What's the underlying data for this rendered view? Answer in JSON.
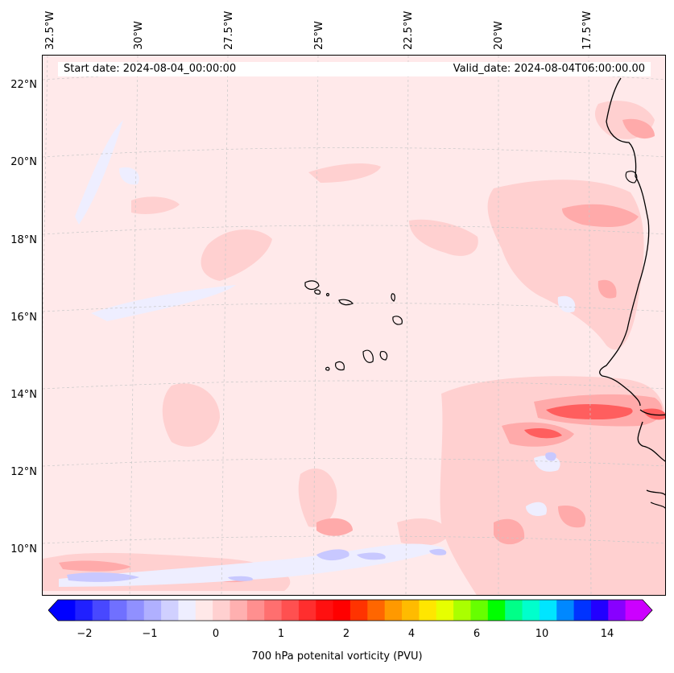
{
  "header": {
    "start_date": "Start date: 2024-08-04_00:00:00",
    "valid_date": "Valid_date: 2024-08-04T06:00:00.00"
  },
  "axes": {
    "lon_labels": [
      "32.5°W",
      "30°W",
      "27.5°W",
      "25°W",
      "22.5°W",
      "20°W",
      "17.5°W"
    ],
    "lat_labels": [
      "22°N",
      "20°N",
      "18°N",
      "16°N",
      "14°N",
      "12°N",
      "10°N"
    ]
  },
  "colorbar": {
    "label": "700 hPa potenital vorticity (PVU)",
    "ticks": [
      "−2",
      "−1",
      "0",
      "1",
      "2",
      "4",
      "6",
      "10",
      "14"
    ],
    "colors": [
      "#0000ff",
      "#2020ff",
      "#4848ff",
      "#7070ff",
      "#9090ff",
      "#b0b0ff",
      "#d0d0ff",
      "#eeeeff",
      "#ffe8e8",
      "#ffd0d0",
      "#ffb0b0",
      "#ff8f8f",
      "#ff6f6f",
      "#ff5050",
      "#ff2e2e",
      "#ff1010",
      "#ff0000",
      "#ff3300",
      "#ff6600",
      "#ff9900",
      "#ffbb00",
      "#ffe600",
      "#e6ff00",
      "#aaff00",
      "#66ff00",
      "#00ff00",
      "#00ff88",
      "#00ffcc",
      "#00e5ff",
      "#0088ff",
      "#0033ff",
      "#2200ff",
      "#8800ff",
      "#cc00ff"
    ],
    "under_color": "#0000ff",
    "over_color": "#cc00ff"
  }
}
